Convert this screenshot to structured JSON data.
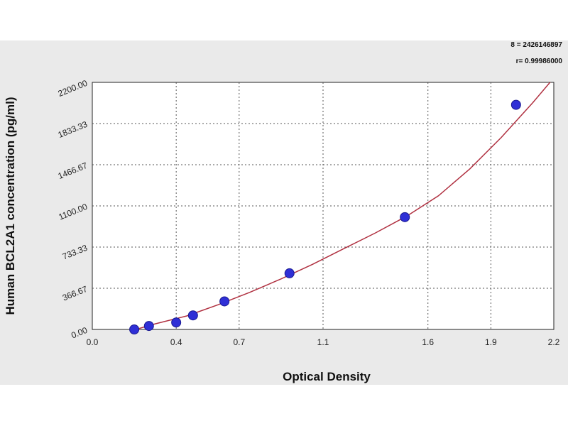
{
  "chart_data": {
    "type": "scatter",
    "title": "",
    "xlabel": "Optical Density",
    "ylabel": "Human BCL2A1 concentration (pg/ml)",
    "xlim": [
      0.0,
      2.2
    ],
    "ylim": [
      0.0,
      2200.0
    ],
    "x_ticks": [
      "0.0",
      "0.4",
      "0.7",
      "1.1",
      "1.6",
      "1.9",
      "2.2"
    ],
    "x_tick_values": [
      0.0,
      0.4,
      0.7,
      1.1,
      1.6,
      1.9,
      2.2
    ],
    "y_ticks": [
      "0.00",
      "366.67",
      "733.33",
      "1100.00",
      "1466.67",
      "1833.33",
      "2200.00"
    ],
    "y_tick_values": [
      0.0,
      366.67,
      733.33,
      1100.0,
      1466.67,
      1833.33,
      2200.0
    ],
    "grid": true,
    "series": [
      {
        "values": [
          {
            "x": 0.2,
            "y": 0
          },
          {
            "x": 0.27,
            "y": 31
          },
          {
            "x": 0.4,
            "y": 62
          },
          {
            "x": 0.48,
            "y": 125
          },
          {
            "x": 0.63,
            "y": 250
          },
          {
            "x": 0.94,
            "y": 500
          },
          {
            "x": 1.49,
            "y": 1000
          },
          {
            "x": 2.02,
            "y": 2000
          }
        ],
        "color": "#2f2fd6"
      }
    ],
    "fit_curve": {
      "color": "#b03040",
      "x": [
        0.17,
        0.3,
        0.45,
        0.6,
        0.75,
        0.9,
        1.05,
        1.2,
        1.35,
        1.5,
        1.65,
        1.8,
        1.95,
        2.1,
        2.2
      ],
      "y": [
        -20,
        50,
        120,
        220,
        330,
        450,
        580,
        720,
        860,
        1010,
        1190,
        1430,
        1710,
        2020,
        2240
      ]
    },
    "annotations": [
      "8 = 2426146897",
      "r= 0.99986000"
    ]
  }
}
